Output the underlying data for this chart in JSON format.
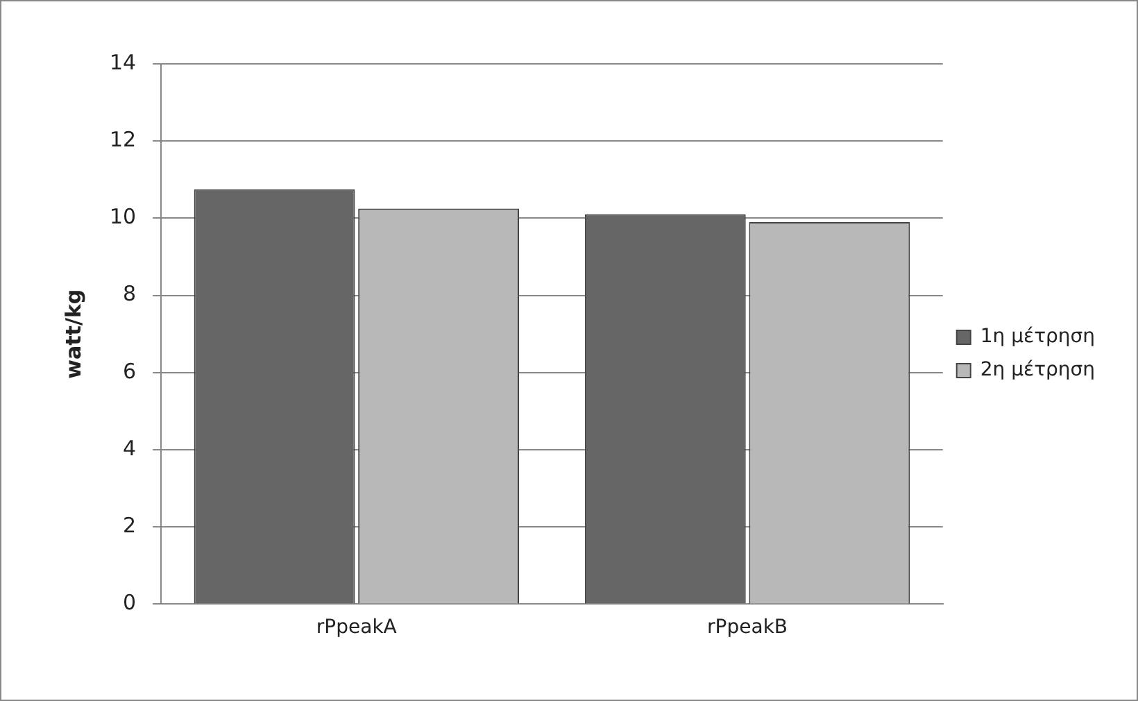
{
  "chart_data": {
    "type": "bar",
    "ylabel": "watt/kg",
    "categories": [
      "rPpeakA",
      "rPpeakB"
    ],
    "series": [
      {
        "name": "1η μέτρηση",
        "color": "#666666",
        "values": [
          10.75,
          10.1
        ]
      },
      {
        "name": "2η μέτρηση",
        "color": "#b8b8b8",
        "values": [
          10.25,
          9.9
        ]
      }
    ],
    "ylim": [
      0,
      14
    ],
    "yticks": [
      0,
      2,
      4,
      6,
      8,
      10,
      12,
      14
    ],
    "grid": "y",
    "legend": "right"
  }
}
